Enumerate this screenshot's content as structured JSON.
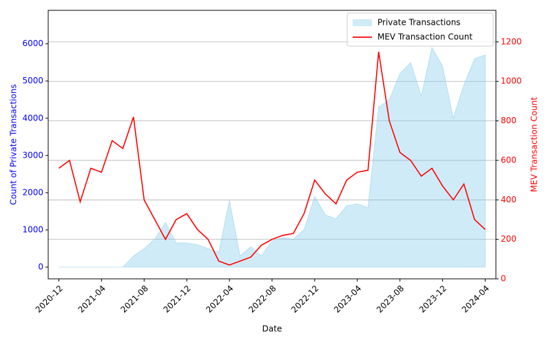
{
  "chart_data": {
    "type": "area_line_dual",
    "x_label": "Date",
    "y_label": "Count of Private Transactions",
    "y2_label": "MEV Transaction Count",
    "x": [
      "2020-12",
      "2021-01",
      "2021-02",
      "2021-03",
      "2021-04",
      "2021-05",
      "2021-06",
      "2021-07",
      "2021-08",
      "2021-09",
      "2021-10",
      "2021-11",
      "2021-12",
      "2022-01",
      "2022-02",
      "2022-03",
      "2022-04",
      "2022-05",
      "2022-06",
      "2022-07",
      "2022-08",
      "2022-09",
      "2022-10",
      "2022-11",
      "2022-12",
      "2023-01",
      "2023-02",
      "2023-03",
      "2023-04",
      "2023-05",
      "2023-06",
      "2023-07",
      "2023-08",
      "2023-09",
      "2023-10",
      "2023-11",
      "2023-12",
      "2024-01",
      "2024-02",
      "2024-03",
      "2024-04"
    ],
    "xlim": [
      "2020-11",
      "2024-05"
    ],
    "xticks": [
      "2020-12",
      "2021-04",
      "2021-08",
      "2021-12",
      "2022-04",
      "2022-08",
      "2022-12",
      "2023-04",
      "2023-08",
      "2023-12",
      "2024-04"
    ],
    "ylim": [
      -315,
      6900
    ],
    "yticks": [
      0,
      1000,
      2000,
      3000,
      4000,
      5000,
      6000
    ],
    "y2lim": [
      0,
      1360
    ],
    "y2ticks": [
      0,
      200,
      400,
      600,
      800,
      1000,
      1200
    ],
    "grid": true,
    "legend": "upper right",
    "series": [
      {
        "name": "Private Transactions",
        "color": "#87ceeb",
        "kind": "area",
        "values": [
          0,
          0,
          0,
          0,
          0,
          0,
          0,
          300,
          500,
          750,
          1200,
          650,
          650,
          600,
          500,
          400,
          1800,
          300,
          550,
          300,
          700,
          800,
          750,
          1000,
          1900,
          1400,
          1300,
          1650,
          1700,
          1600,
          4300,
          4500,
          5200,
          5500,
          4600,
          5900,
          5400,
          4000,
          4900,
          5600,
          5700
        ]
      },
      {
        "name": "MEV Transaction Count",
        "color": "#ff0000",
        "kind": "line",
        "axis": "y2",
        "values": [
          560,
          600,
          390,
          560,
          540,
          700,
          660,
          820,
          400,
          300,
          200,
          300,
          330,
          250,
          200,
          90,
          70,
          90,
          110,
          170,
          200,
          220,
          230,
          330,
          500,
          430,
          380,
          500,
          540,
          550,
          1150,
          800,
          640,
          600,
          520,
          560,
          470,
          400,
          480,
          300,
          250
        ]
      }
    ]
  }
}
